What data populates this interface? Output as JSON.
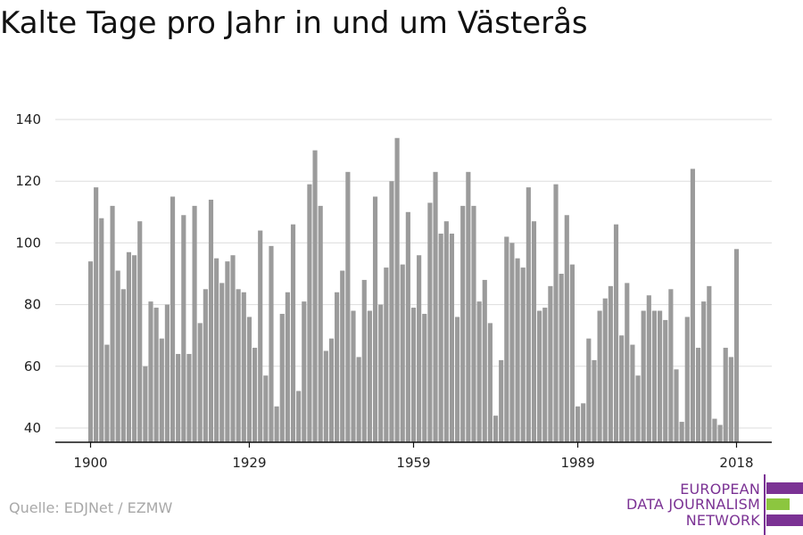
{
  "header": {
    "title": "Kalte Tage pro Jahr in und um Västerås"
  },
  "footer": {
    "source": "Quelle: EDJNet / EZMW"
  },
  "logo": {
    "line1": "EUROPEAN",
    "line2": "DATA JOURNALISM",
    "line3": "NETWORK",
    "text_color": "#7b3294",
    "bar_color": "#7b3294",
    "accent_color": "#8cc63f",
    "divider_color": "#7b3294"
  },
  "colors": {
    "bar": "#9b9b9b",
    "grid": "#dddddd",
    "axis": "#111111"
  },
  "chart_data": {
    "type": "bar",
    "title": "Kalte Tage pro Jahr in und um Västerås",
    "xlabel": "",
    "ylabel": "",
    "x_ticks": [
      1900,
      1929,
      1959,
      1989,
      2018
    ],
    "y_ticks": [
      40,
      60,
      80,
      100,
      120,
      140
    ],
    "ylim": [
      36,
      141
    ],
    "xlim": [
      1899,
      2019
    ],
    "grid": true,
    "x": [
      1900,
      1901,
      1902,
      1903,
      1904,
      1905,
      1906,
      1907,
      1908,
      1909,
      1910,
      1911,
      1912,
      1913,
      1914,
      1915,
      1916,
      1917,
      1918,
      1919,
      1920,
      1921,
      1922,
      1923,
      1924,
      1925,
      1926,
      1927,
      1928,
      1929,
      1930,
      1931,
      1932,
      1933,
      1934,
      1935,
      1936,
      1937,
      1938,
      1939,
      1940,
      1941,
      1942,
      1943,
      1944,
      1945,
      1946,
      1947,
      1948,
      1949,
      1950,
      1951,
      1952,
      1953,
      1954,
      1955,
      1956,
      1957,
      1958,
      1959,
      1960,
      1961,
      1962,
      1963,
      1964,
      1965,
      1966,
      1967,
      1968,
      1969,
      1970,
      1971,
      1972,
      1973,
      1974,
      1975,
      1976,
      1977,
      1978,
      1979,
      1980,
      1981,
      1982,
      1983,
      1984,
      1985,
      1986,
      1987,
      1988,
      1989,
      1990,
      1991,
      1992,
      1993,
      1994,
      1995,
      1996,
      1997,
      1998,
      1999,
      2000,
      2001,
      2002,
      2003,
      2004,
      2005,
      2006,
      2007,
      2008,
      2009,
      2010,
      2011,
      2012,
      2013,
      2014,
      2015,
      2016,
      2017,
      2018
    ],
    "values": [
      94,
      118,
      108,
      67,
      112,
      91,
      85,
      97,
      96,
      107,
      60,
      81,
      79,
      69,
      80,
      115,
      64,
      109,
      64,
      112,
      74,
      85,
      114,
      95,
      87,
      94,
      96,
      85,
      84,
      76,
      66,
      104,
      57,
      99,
      47,
      77,
      84,
      106,
      52,
      81,
      119,
      130,
      112,
      65,
      69,
      84,
      91,
      123,
      78,
      63,
      88,
      78,
      115,
      80,
      92,
      120,
      134,
      93,
      110,
      79,
      96,
      77,
      113,
      123,
      103,
      107,
      103,
      76,
      112,
      123,
      112,
      81,
      88,
      74,
      44,
      62,
      102,
      100,
      95,
      92,
      118,
      107,
      78,
      79,
      86,
      119,
      90,
      109,
      93,
      47,
      48,
      69,
      62,
      78,
      82,
      86,
      106,
      70,
      87,
      67,
      57,
      78,
      83,
      78,
      78,
      75,
      85,
      59,
      42,
      76,
      124,
      66,
      81,
      86,
      43,
      41,
      66,
      63,
      98
    ]
  }
}
